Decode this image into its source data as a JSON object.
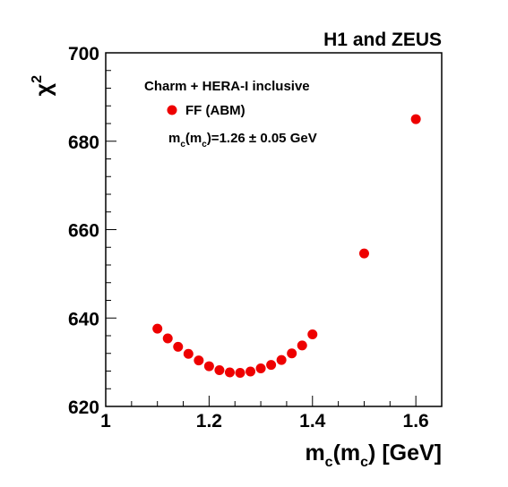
{
  "chart_data": {
    "type": "scatter",
    "title": "H1 and ZEUS",
    "header": "Charm + HERA-I inclusive",
    "xlabel": {
      "main": "m",
      "sub1": "c",
      "mid": "(m",
      "sub2": "c",
      "tail": ") [GeV]"
    },
    "ylabel": {
      "main": "χ",
      "sup": "2"
    },
    "xlim": [
      1.0,
      1.65
    ],
    "ylim": [
      620,
      700
    ],
    "xticks": [
      1.0,
      1.2,
      1.4,
      1.6
    ],
    "xtick_labels": [
      "1",
      "1.2",
      "1.4",
      "1.6"
    ],
    "yticks": [
      620,
      640,
      660,
      680,
      700
    ],
    "ytick_labels": [
      "620",
      "640",
      "660",
      "680",
      "700"
    ],
    "grid": false,
    "legend_position": "top-left",
    "series": [
      {
        "name": "FF (ABM)",
        "color": "#ee0000",
        "x": [
          1.1,
          1.12,
          1.14,
          1.16,
          1.18,
          1.2,
          1.22,
          1.24,
          1.26,
          1.28,
          1.3,
          1.32,
          1.34,
          1.36,
          1.38,
          1.4,
          1.5,
          1.6
        ],
        "y": [
          637.6,
          635.4,
          633.5,
          631.9,
          630.4,
          629.1,
          628.2,
          627.7,
          627.6,
          627.9,
          628.6,
          629.4,
          630.5,
          632.0,
          633.8,
          636.3,
          654.6,
          685.0
        ]
      }
    ],
    "annotation": {
      "main": "m",
      "sub1": "c",
      "mid": "(m",
      "sub2": "c",
      "tail": ")=1.26 ± 0.05 GeV"
    }
  }
}
